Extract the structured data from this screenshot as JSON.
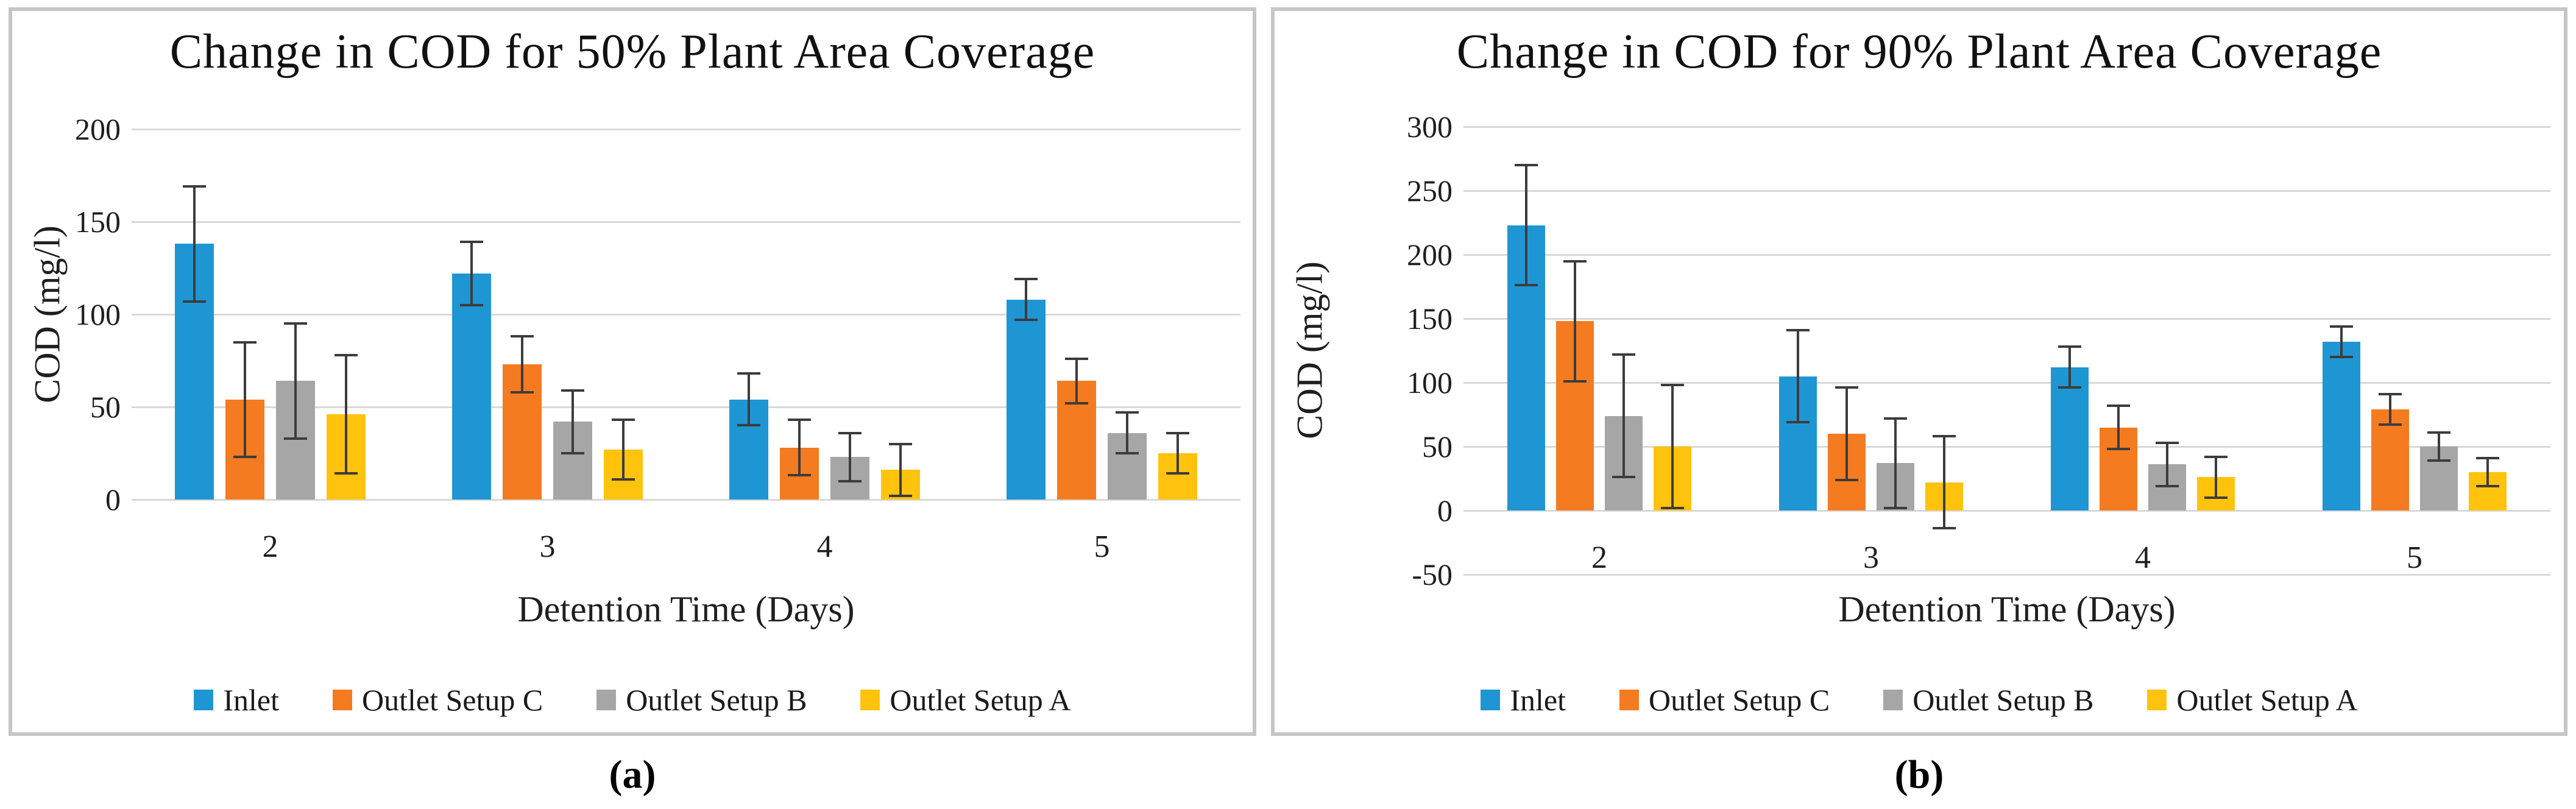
{
  "figure": {
    "captions": {
      "a": "(a)",
      "b": "(b)"
    }
  },
  "chart_data": [
    {
      "type": "bar",
      "title": "Change in COD for 50% Plant Area Coverage",
      "xlabel": "Detention Time (Days)",
      "ylabel": "COD (mg/l)",
      "categories": [
        "2",
        "3",
        "4",
        "5"
      ],
      "ylim": [
        0,
        200
      ],
      "ytick_step": 50,
      "yticks": [
        0,
        50,
        100,
        150,
        200
      ],
      "grid": true,
      "legend_position": "bottom",
      "gridline_color": "#d9d9d9",
      "error_bar_color": "#3c3c3c",
      "series": [
        {
          "name": "Inlet",
          "color": "#1f96d4",
          "values": [
            138,
            122,
            54,
            108
          ],
          "errors": [
            31,
            17,
            14,
            11
          ]
        },
        {
          "name": "Outlet Setup C",
          "color": "#f47b20",
          "values": [
            54,
            73,
            28,
            64
          ],
          "errors": [
            31,
            15,
            15,
            12
          ]
        },
        {
          "name": "Outlet Setup B",
          "color": "#a6a6a6",
          "values": [
            64,
            42,
            23,
            36
          ],
          "errors": [
            31,
            17,
            13,
            11
          ]
        },
        {
          "name": "Outlet Setup A",
          "color": "#ffc30d",
          "values": [
            46,
            27,
            16,
            25
          ],
          "errors": [
            32,
            16,
            14,
            11
          ]
        }
      ]
    },
    {
      "type": "bar",
      "title": "Change in COD for 90% Plant Area Coverage",
      "xlabel": "Detention Time (Days)",
      "ylabel": "COD (mg/l)",
      "categories": [
        "2",
        "3",
        "4",
        "5"
      ],
      "ylim": [
        -50,
        300
      ],
      "ytick_step": 50,
      "yticks": [
        -50,
        0,
        50,
        100,
        150,
        200,
        250,
        300
      ],
      "grid": true,
      "legend_position": "bottom",
      "gridline_color": "#d9d9d9",
      "error_bar_color": "#3c3c3c",
      "series": [
        {
          "name": "Inlet",
          "color": "#1f96d4",
          "values": [
            223,
            105,
            112,
            132
          ],
          "errors": [
            47,
            36,
            16,
            12
          ]
        },
        {
          "name": "Outlet Setup C",
          "color": "#f47b20",
          "values": [
            148,
            60,
            65,
            79
          ],
          "errors": [
            47,
            36,
            17,
            12
          ]
        },
        {
          "name": "Outlet Setup B",
          "color": "#a6a6a6",
          "values": [
            74,
            37,
            36,
            50
          ],
          "errors": [
            48,
            35,
            17,
            11
          ]
        },
        {
          "name": "Outlet Setup A",
          "color": "#ffc30d",
          "values": [
            50,
            22,
            26,
            30
          ],
          "errors": [
            48,
            36,
            16,
            11
          ]
        }
      ]
    }
  ]
}
